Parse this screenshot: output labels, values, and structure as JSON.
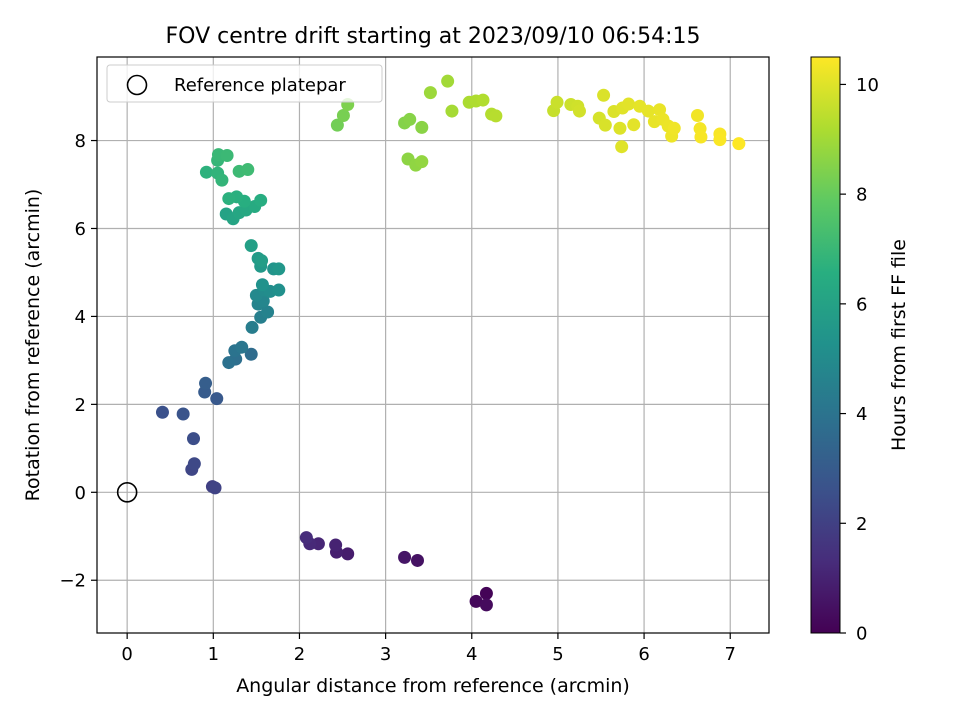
{
  "chart_data": {
    "type": "scatter",
    "title": "FOV centre drift starting at 2023/09/10 06:54:15",
    "xlabel": "Angular distance from reference (arcmin)",
    "ylabel": "Rotation from reference (arcmin)",
    "xlim": [
      -0.35,
      7.45
    ],
    "ylim": [
      -3.2,
      9.9
    ],
    "xticks": [
      0,
      1,
      2,
      3,
      4,
      5,
      6,
      7
    ],
    "xtick_labels": [
      "0",
      "1",
      "2",
      "3",
      "4",
      "5",
      "6",
      "7"
    ],
    "yticks": [
      -2,
      0,
      2,
      4,
      6,
      8
    ],
    "ytick_labels": [
      "−2",
      "0",
      "2",
      "4",
      "6",
      "8"
    ],
    "grid": true,
    "legend": {
      "location": "top-left",
      "entries": [
        {
          "label": "Reference platepar",
          "marker": "open-circle"
        }
      ]
    },
    "reference_point": {
      "x": 0,
      "y": 0
    },
    "colorbar": {
      "label": "Hours from first FF file",
      "colormap": "viridis",
      "range": [
        0,
        10.5
      ],
      "ticks": [
        0,
        2,
        4,
        6,
        8,
        10
      ],
      "tick_labels": [
        "0",
        "2",
        "4",
        "6",
        "8",
        "10"
      ]
    },
    "points": [
      {
        "x": 4.17,
        "y": -2.3,
        "c": 0.1
      },
      {
        "x": 4.05,
        "y": -2.48,
        "c": 0.2
      },
      {
        "x": 4.17,
        "y": -2.56,
        "c": 0.3
      },
      {
        "x": 3.37,
        "y": -1.55,
        "c": 0.5
      },
      {
        "x": 3.22,
        "y": -1.48,
        "c": 0.6
      },
      {
        "x": 2.56,
        "y": -1.4,
        "c": 0.8
      },
      {
        "x": 2.43,
        "y": -1.36,
        "c": 0.9
      },
      {
        "x": 2.42,
        "y": -1.2,
        "c": 1.0
      },
      {
        "x": 2.22,
        "y": -1.17,
        "c": 1.1
      },
      {
        "x": 2.12,
        "y": -1.17,
        "c": 1.2
      },
      {
        "x": 2.08,
        "y": -1.03,
        "c": 1.3
      },
      {
        "x": 0.99,
        "y": 0.13,
        "c": 2.0
      },
      {
        "x": 1.02,
        "y": 0.1,
        "c": 2.1
      },
      {
        "x": 0.75,
        "y": 0.52,
        "c": 2.2
      },
      {
        "x": 0.78,
        "y": 0.65,
        "c": 2.3
      },
      {
        "x": 0.77,
        "y": 1.22,
        "c": 2.5
      },
      {
        "x": 0.41,
        "y": 1.82,
        "c": 2.6
      },
      {
        "x": 0.65,
        "y": 1.78,
        "c": 2.7
      },
      {
        "x": 1.04,
        "y": 2.13,
        "c": 2.9
      },
      {
        "x": 0.9,
        "y": 2.28,
        "c": 3.0
      },
      {
        "x": 0.91,
        "y": 2.48,
        "c": 3.1
      },
      {
        "x": 1.44,
        "y": 3.14,
        "c": 3.7
      },
      {
        "x": 1.26,
        "y": 3.03,
        "c": 3.8
      },
      {
        "x": 1.18,
        "y": 2.95,
        "c": 3.9
      },
      {
        "x": 1.25,
        "y": 3.22,
        "c": 4.0
      },
      {
        "x": 1.33,
        "y": 3.3,
        "c": 4.1
      },
      {
        "x": 1.45,
        "y": 3.75,
        "c": 4.4
      },
      {
        "x": 1.55,
        "y": 3.98,
        "c": 4.5
      },
      {
        "x": 1.63,
        "y": 4.1,
        "c": 4.6
      },
      {
        "x": 1.52,
        "y": 4.28,
        "c": 4.7
      },
      {
        "x": 1.58,
        "y": 4.35,
        "c": 4.8
      },
      {
        "x": 1.5,
        "y": 4.48,
        "c": 4.9
      },
      {
        "x": 1.59,
        "y": 4.6,
        "c": 5.0
      },
      {
        "x": 1.66,
        "y": 4.57,
        "c": 5.1
      },
      {
        "x": 1.76,
        "y": 4.6,
        "c": 5.2
      },
      {
        "x": 1.57,
        "y": 4.72,
        "c": 5.3
      },
      {
        "x": 1.7,
        "y": 5.08,
        "c": 5.4
      },
      {
        "x": 1.76,
        "y": 5.08,
        "c": 5.5
      },
      {
        "x": 1.55,
        "y": 5.14,
        "c": 5.6
      },
      {
        "x": 1.52,
        "y": 5.32,
        "c": 5.7
      },
      {
        "x": 1.56,
        "y": 5.27,
        "c": 5.8
      },
      {
        "x": 1.44,
        "y": 5.61,
        "c": 5.9
      },
      {
        "x": 1.15,
        "y": 6.33,
        "c": 6.0
      },
      {
        "x": 1.23,
        "y": 6.22,
        "c": 6.1
      },
      {
        "x": 1.3,
        "y": 6.36,
        "c": 6.2
      },
      {
        "x": 1.38,
        "y": 6.42,
        "c": 6.3
      },
      {
        "x": 1.48,
        "y": 6.5,
        "c": 6.4
      },
      {
        "x": 1.55,
        "y": 6.64,
        "c": 6.5
      },
      {
        "x": 1.36,
        "y": 6.62,
        "c": 6.55
      },
      {
        "x": 1.27,
        "y": 6.72,
        "c": 6.6
      },
      {
        "x": 1.18,
        "y": 6.68,
        "c": 6.65
      },
      {
        "x": 0.92,
        "y": 7.28,
        "c": 6.7
      },
      {
        "x": 1.05,
        "y": 7.26,
        "c": 6.8
      },
      {
        "x": 1.1,
        "y": 7.1,
        "c": 6.85
      },
      {
        "x": 1.05,
        "y": 7.55,
        "c": 6.9
      },
      {
        "x": 1.06,
        "y": 7.68,
        "c": 7.0
      },
      {
        "x": 1.16,
        "y": 7.66,
        "c": 7.05
      },
      {
        "x": 1.3,
        "y": 7.3,
        "c": 7.1
      },
      {
        "x": 1.4,
        "y": 7.34,
        "c": 7.15
      },
      {
        "x": 2.44,
        "y": 8.35,
        "c": 8.2
      },
      {
        "x": 2.51,
        "y": 8.57,
        "c": 8.3
      },
      {
        "x": 2.56,
        "y": 8.82,
        "c": 8.4
      },
      {
        "x": 3.22,
        "y": 8.4,
        "c": 8.5
      },
      {
        "x": 3.28,
        "y": 8.48,
        "c": 8.55
      },
      {
        "x": 3.42,
        "y": 8.3,
        "c": 8.6
      },
      {
        "x": 3.26,
        "y": 7.58,
        "c": 8.65
      },
      {
        "x": 3.35,
        "y": 7.44,
        "c": 8.7
      },
      {
        "x": 3.42,
        "y": 7.52,
        "c": 8.75
      },
      {
        "x": 3.52,
        "y": 9.09,
        "c": 8.9
      },
      {
        "x": 3.72,
        "y": 9.35,
        "c": 9.0
      },
      {
        "x": 3.77,
        "y": 8.67,
        "c": 9.05
      },
      {
        "x": 3.97,
        "y": 8.87,
        "c": 9.15
      },
      {
        "x": 4.05,
        "y": 8.9,
        "c": 9.2
      },
      {
        "x": 4.13,
        "y": 8.92,
        "c": 9.25
      },
      {
        "x": 4.23,
        "y": 8.6,
        "c": 9.3
      },
      {
        "x": 4.28,
        "y": 8.56,
        "c": 9.35
      },
      {
        "x": 4.95,
        "y": 8.68,
        "c": 9.6
      },
      {
        "x": 4.99,
        "y": 8.87,
        "c": 9.65
      },
      {
        "x": 5.15,
        "y": 8.82,
        "c": 9.7
      },
      {
        "x": 5.23,
        "y": 8.78,
        "c": 9.75
      },
      {
        "x": 5.25,
        "y": 8.67,
        "c": 9.8
      },
      {
        "x": 5.48,
        "y": 8.51,
        "c": 9.85
      },
      {
        "x": 5.55,
        "y": 8.35,
        "c": 9.9
      },
      {
        "x": 5.53,
        "y": 9.03,
        "c": 9.92
      },
      {
        "x": 5.65,
        "y": 8.66,
        "c": 9.95
      },
      {
        "x": 5.72,
        "y": 8.28,
        "c": 9.97
      },
      {
        "x": 5.74,
        "y": 7.86,
        "c": 10.0
      },
      {
        "x": 5.75,
        "y": 8.74,
        "c": 10.02
      },
      {
        "x": 5.82,
        "y": 8.83,
        "c": 10.05
      },
      {
        "x": 5.88,
        "y": 8.36,
        "c": 10.08
      },
      {
        "x": 5.95,
        "y": 8.78,
        "c": 10.1
      },
      {
        "x": 6.05,
        "y": 8.67,
        "c": 10.12
      },
      {
        "x": 6.12,
        "y": 8.43,
        "c": 10.15
      },
      {
        "x": 6.18,
        "y": 8.7,
        "c": 10.18
      },
      {
        "x": 6.22,
        "y": 8.48,
        "c": 10.2
      },
      {
        "x": 6.28,
        "y": 8.33,
        "c": 10.22
      },
      {
        "x": 6.32,
        "y": 8.1,
        "c": 10.25
      },
      {
        "x": 6.35,
        "y": 8.28,
        "c": 10.28
      },
      {
        "x": 6.62,
        "y": 8.57,
        "c": 10.3
      },
      {
        "x": 6.65,
        "y": 8.27,
        "c": 10.35
      },
      {
        "x": 6.66,
        "y": 8.08,
        "c": 10.4
      },
      {
        "x": 6.88,
        "y": 8.15,
        "c": 10.42
      },
      {
        "x": 6.88,
        "y": 8.02,
        "c": 10.45
      },
      {
        "x": 7.1,
        "y": 7.93,
        "c": 10.5
      }
    ]
  }
}
